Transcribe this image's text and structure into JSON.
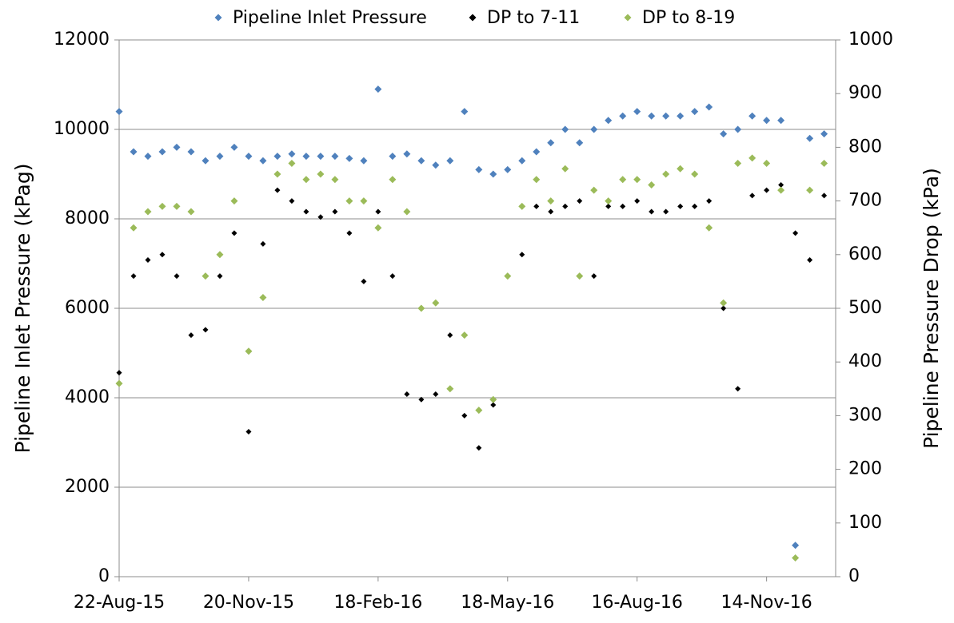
{
  "chart_data": {
    "type": "scatter",
    "y_label": "Pipeline Inlet Pressure (kPag)",
    "y2_label": "Pipeline Pressure Drop (kPa)",
    "x": [
      "2015-08-22",
      "2015-09-01",
      "2015-09-11",
      "2015-09-21",
      "2015-10-01",
      "2015-10-11",
      "2015-10-21",
      "2015-10-31",
      "2015-11-10",
      "2015-11-20",
      "2015-11-30",
      "2015-12-10",
      "2015-12-20",
      "2015-12-30",
      "2016-01-09",
      "2016-01-19",
      "2016-01-29",
      "2016-02-08",
      "2016-02-18",
      "2016-02-28",
      "2016-03-09",
      "2016-03-19",
      "2016-03-29",
      "2016-04-08",
      "2016-04-18",
      "2016-04-28",
      "2016-05-08",
      "2016-05-18",
      "2016-05-28",
      "2016-06-07",
      "2016-06-17",
      "2016-06-27",
      "2016-07-07",
      "2016-07-17",
      "2016-07-27",
      "2016-08-06",
      "2016-08-16",
      "2016-08-26",
      "2016-09-05",
      "2016-09-15",
      "2016-09-25",
      "2016-10-05",
      "2016-10-15",
      "2016-10-25",
      "2016-11-04",
      "2016-11-14",
      "2016-11-24",
      "2016-12-04",
      "2016-12-14",
      "2016-12-24"
    ],
    "series": [
      {
        "name": "Pipeline Inlet Pressure",
        "color": "#4f81bd",
        "axis": "y",
        "values": [
          10400,
          9500,
          9400,
          9500,
          9600,
          9500,
          9300,
          9400,
          9600,
          9400,
          9300,
          9400,
          9450,
          9400,
          9400,
          9400,
          9350,
          9300,
          10900,
          9400,
          9450,
          9300,
          9200,
          9300,
          10400,
          9100,
          9000,
          9100,
          9300,
          9500,
          9700,
          10000,
          9700,
          10000,
          10200,
          10300,
          10400,
          10300,
          10300,
          10300,
          10400,
          10500,
          9900,
          10000,
          10300,
          10200,
          10200,
          700,
          9800,
          9900
        ]
      },
      {
        "name": "DP to 7-11",
        "color": "#000000",
        "axis": "y2",
        "values": [
          380,
          560,
          590,
          600,
          560,
          450,
          460,
          560,
          640,
          270,
          620,
          720,
          700,
          680,
          670,
          680,
          640,
          550,
          680,
          560,
          340,
          330,
          340,
          450,
          300,
          240,
          320,
          560,
          600,
          690,
          680,
          690,
          700,
          560,
          690,
          690,
          700,
          680,
          680,
          690,
          690,
          700,
          500,
          350,
          710,
          720,
          730,
          640,
          590,
          710
        ]
      },
      {
        "name": "DP to 8-19",
        "color": "#9bbb59",
        "axis": "y2",
        "values": [
          360,
          650,
          680,
          690,
          690,
          680,
          560,
          600,
          700,
          420,
          520,
          750,
          770,
          740,
          750,
          740,
          700,
          700,
          650,
          740,
          680,
          500,
          510,
          350,
          450,
          310,
          330,
          560,
          690,
          740,
          700,
          760,
          560,
          720,
          700,
          740,
          740,
          730,
          750,
          760,
          750,
          650,
          510,
          770,
          780,
          770,
          720,
          35,
          720,
          770
        ]
      }
    ],
    "xlim": [
      "2015-08-22",
      "2017-01-01"
    ],
    "xticks": [
      {
        "value": "2015-08-22",
        "label": "22-Aug-15"
      },
      {
        "value": "2015-11-20",
        "label": "20-Nov-15"
      },
      {
        "value": "2016-02-18",
        "label": "18-Feb-16"
      },
      {
        "value": "2016-05-18",
        "label": "18-May-16"
      },
      {
        "value": "2016-08-16",
        "label": "16-Aug-16"
      },
      {
        "value": "2016-11-14",
        "label": "14-Nov-16"
      }
    ],
    "ylim": [
      0,
      12000
    ],
    "yticks": [
      0,
      2000,
      4000,
      6000,
      8000,
      10000,
      12000
    ],
    "y2lim": [
      0,
      1000
    ],
    "y2ticks": [
      0,
      100,
      200,
      300,
      400,
      500,
      600,
      700,
      800,
      900,
      1000
    ],
    "grid": true,
    "legend": "top"
  }
}
